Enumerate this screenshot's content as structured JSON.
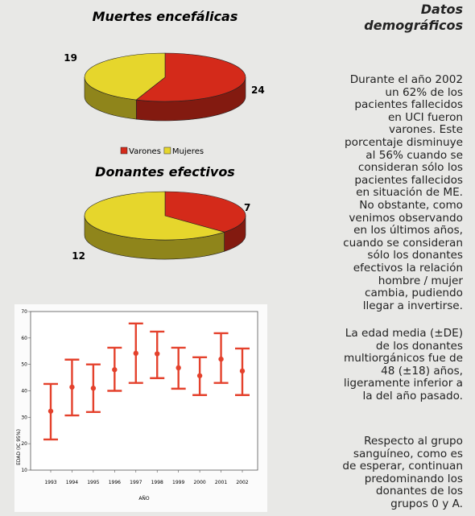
{
  "chart_data": [
    {
      "type": "pie",
      "title": "Muertes encefálicas",
      "categories": [
        "Varones",
        "Mujeres"
      ],
      "values": [
        24,
        19
      ],
      "colors": [
        "#d42a1a",
        "#e6d62c"
      ],
      "legend": true
    },
    {
      "type": "pie",
      "title": "Donantes efectivos",
      "values": [
        7,
        12
      ],
      "colors": [
        "#d42a1a",
        "#e6d62c"
      ],
      "legend": false
    },
    {
      "type": "errorbar",
      "xlabel": "AÑO",
      "ylabel": "EDAD (IC 95%)",
      "categories": [
        "1993",
        "1994",
        "1995",
        "1996",
        "1997",
        "1998",
        "1999",
        "2000",
        "2001",
        "2002"
      ],
      "series": [
        {
          "color": "#e4412c",
          "values": [
            32.3,
            41.4,
            41,
            48,
            54.2,
            54,
            48.7,
            45.7,
            52,
            47.5
          ],
          "lower": [
            21.6,
            30.7,
            32,
            40,
            43,
            44.8,
            40.8,
            38.4,
            43,
            38.4
          ],
          "upper": [
            42.6,
            51.8,
            50,
            56.3,
            65.5,
            62.4,
            56.3,
            52.7,
            61.8,
            56
          ]
        }
      ],
      "ylim": [
        10,
        70
      ],
      "yticks": [
        10,
        20,
        30,
        40,
        50,
        60,
        70
      ]
    }
  ],
  "text": {
    "heading": "Datos demográficos",
    "paragraphs": [
      [
        "Durante el año 2002",
        "un 62% de los",
        "pacientes fallecidos",
        "en UCI fueron",
        "varones. Este",
        "porcentaje disminuye",
        "al 56% cuando se",
        "consideran sólo los",
        "pacientes fallecidos",
        "en situación de ME.",
        "No obstante, como",
        "venimos observando",
        "en los últimos años,",
        "cuando se consideran",
        "sólo los donantes",
        "efectivos la relación",
        "hombre / mujer",
        "cambia, pudiendo",
        "llegar a invertirse."
      ],
      [
        "La edad media (±DE)",
        "de los donantes",
        "multiorgánicos fue de",
        "48 (±18) años,",
        "ligeramente inferior a",
        "la del año pasado."
      ],
      [
        "Respecto al grupo",
        "sanguíneo, como es",
        "de esperar, continuan",
        "predominando los",
        "donantes de los",
        "grupos 0 y A."
      ]
    ]
  }
}
